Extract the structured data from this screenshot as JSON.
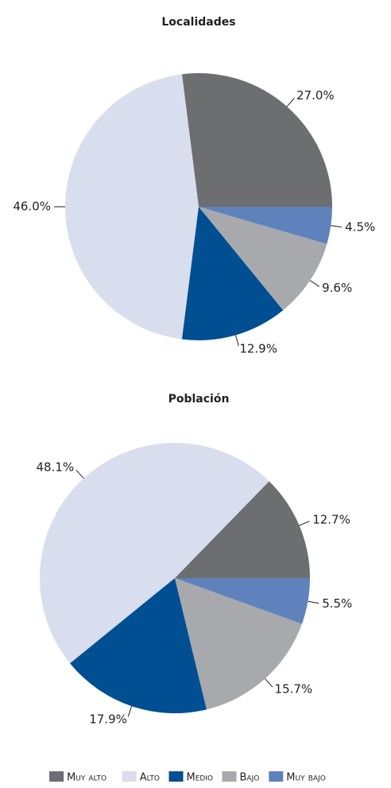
{
  "chart_data": [
    {
      "type": "pie",
      "title": "Localidades",
      "categories": [
        "Muy alto",
        "Alto",
        "Medio",
        "Bajo",
        "Muy bajo"
      ],
      "values": [
        27.0,
        46.0,
        12.9,
        9.6,
        4.5
      ],
      "value_labels": [
        "27.0%",
        "46.0%",
        "12.9%",
        "9.6%",
        "4.5%"
      ],
      "colors": [
        "#6d6e70",
        "#d9deee",
        "#004f93",
        "#a7a9ac",
        "#5f82bc"
      ]
    },
    {
      "type": "pie",
      "title": "Población",
      "categories": [
        "Muy alto",
        "Alto",
        "Medio",
        "Bajo",
        "Muy bajo"
      ],
      "values": [
        12.7,
        48.1,
        17.9,
        15.7,
        5.5
      ],
      "value_labels": [
        "12.7%",
        "48.1%",
        "17.9%",
        "15.7%",
        "5.5%"
      ],
      "colors": [
        "#6d6e70",
        "#d9deee",
        "#004f93",
        "#a7a9ac",
        "#5f82bc"
      ]
    }
  ]
}
